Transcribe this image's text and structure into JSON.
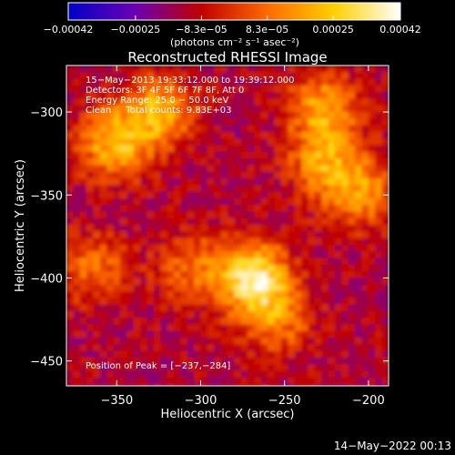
{
  "chart_data": {
    "type": "heatmap",
    "title": "Reconstructed RHESSI Image",
    "xlabel": "Heliocentric X (arcsec)",
    "ylabel": "Heliocentric Y (arcsec)",
    "xlim": [
      -380,
      -188
    ],
    "ylim": [
      -465,
      -272
    ],
    "x_ticks": [
      {
        "value": -350,
        "label": "−350"
      },
      {
        "value": -300,
        "label": "−300"
      },
      {
        "value": -250,
        "label": "−250"
      },
      {
        "value": -200,
        "label": "−200"
      }
    ],
    "y_ticks": [
      {
        "value": -300,
        "label": "−300"
      },
      {
        "value": -350,
        "label": "−350"
      },
      {
        "value": -400,
        "label": "−400"
      },
      {
        "value": -450,
        "label": "−450"
      }
    ],
    "colorbar": {
      "range": [
        -0.00042,
        0.00042
      ],
      "ticks": [
        {
          "value": -0.00042,
          "label": "−0.00042"
        },
        {
          "value": -0.00025,
          "label": "−0.00025"
        },
        {
          "value": -8.3e-05,
          "label": "−8.3e−05"
        },
        {
          "value": 8.3e-05,
          "label": "8.3e−05"
        },
        {
          "value": 0.00025,
          "label": "0.00025"
        },
        {
          "value": 0.00042,
          "label": "0.00042"
        }
      ],
      "unit": "(photons cm⁻² s⁻¹ asec⁻²)",
      "colors": [
        "#0000c8",
        "#6a00b4",
        "#c00000",
        "#ff6a00",
        "#ffd000",
        "#ffffff"
      ]
    },
    "peak": {
      "x": -237,
      "y": -284
    },
    "bright_regions": [
      {
        "x": -271,
        "y": -397,
        "value": 0.00042
      },
      {
        "x": -354,
        "y": -317,
        "value": 0.00032
      },
      {
        "x": -327,
        "y": -298,
        "value": 0.0003
      },
      {
        "x": -229,
        "y": -295,
        "value": 0.00028
      },
      {
        "x": -228,
        "y": -328,
        "value": 0.00026
      },
      {
        "x": -206,
        "y": -347,
        "value": 0.00024
      },
      {
        "x": -257,
        "y": -422,
        "value": 0.00022
      },
      {
        "x": -367,
        "y": -392,
        "value": 0.0002
      },
      {
        "x": -307,
        "y": -392,
        "value": 0.00018
      }
    ]
  },
  "info": {
    "line1": "15−May−2013 19:33:12.000 to 19:39:12.000",
    "line2": "Detectors: 3F 4F 5F 6F 7F 8F, Att 0",
    "line3": "Energy Range: 25.0 − 50.0 keV",
    "line4": "Clean     Total counts: 9.83E+03",
    "peak_label": "Position of Peak = [−237,−284]"
  },
  "footer": {
    "timestamp": "14−May−2022 00:13"
  }
}
